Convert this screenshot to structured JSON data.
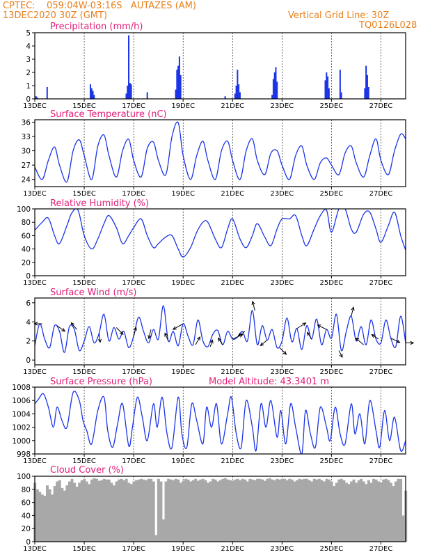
{
  "header": {
    "line1_left": "CPTEC:    059:04W-03:16S   AUTAZES (AM)",
    "line2_left": "13DEC2020 30Z (GMT)",
    "line2_right": "Vertical Grid Line: 30Z",
    "line3_right": "TQ0126L028"
  },
  "colors": {
    "header": "#e8801e",
    "title": "#e0207a",
    "series": "#1a33e6",
    "cloud": "#a8a8a8",
    "arrow": "#000000",
    "grid": "#000000"
  },
  "x_ticks": [
    "13DEC",
    "15DEC",
    "17DEC",
    "19DEC",
    "21DEC",
    "23DEC",
    "25DEC",
    "27DEC"
  ],
  "x_tick_days": [
    0,
    2,
    4,
    6,
    8,
    10,
    12,
    14
  ],
  "x_range_days": [
    0,
    15
  ],
  "chart_data": [
    {
      "id": "precip",
      "type": "bar",
      "title": "Precipitation (mm/h)",
      "ylim": [
        0,
        5
      ],
      "yticks": [
        "0",
        "1",
        "2",
        "3",
        "4",
        "5"
      ],
      "x_days": [
        0.05,
        0.1,
        0.5,
        2.25,
        2.3,
        2.35,
        2.4,
        3.7,
        3.75,
        3.8,
        3.85,
        3.9,
        4.55,
        5.7,
        5.75,
        5.8,
        5.85,
        5.9,
        7.7,
        8.1,
        8.15,
        8.2,
        8.25,
        8.3,
        9.6,
        9.65,
        9.7,
        9.75,
        9.8,
        11.75,
        11.8,
        11.85,
        11.9,
        12.35,
        12.4,
        13.35,
        13.4,
        13.45,
        13.5
      ],
      "values": [
        0.2,
        0.1,
        0.9,
        1.1,
        0.8,
        0.6,
        0.3,
        0.4,
        1.0,
        4.8,
        1.2,
        1.1,
        0.5,
        0.7,
        2.2,
        2.5,
        3.2,
        1.8,
        0.2,
        0.4,
        1.0,
        2.2,
        1.1,
        0.5,
        0.3,
        1.5,
        2.0,
        2.4,
        1.3,
        1.4,
        2.0,
        1.7,
        0.8,
        2.2,
        0.5,
        0.8,
        2.5,
        1.8,
        0.9
      ]
    },
    {
      "id": "temp",
      "type": "line",
      "title": "Surface Temperature (nC)",
      "ylim": [
        22.5,
        36.5
      ],
      "yticks": [
        "24",
        "27",
        "30",
        "33",
        "36"
      ],
      "x": [
        0,
        0.3,
        0.55,
        0.8,
        1.0,
        1.3,
        1.55,
        1.8,
        2.0,
        2.3,
        2.55,
        2.8,
        3.0,
        3.3,
        3.55,
        3.8,
        4.0,
        4.3,
        4.55,
        4.8,
        5.0,
        5.3,
        5.55,
        5.8,
        6.0,
        6.3,
        6.55,
        6.8,
        7.0,
        7.3,
        7.55,
        7.8,
        8.0,
        8.3,
        8.55,
        8.8,
        9.0,
        9.3,
        9.55,
        9.8,
        10.0,
        10.3,
        10.55,
        10.8,
        11.0,
        11.3,
        11.55,
        11.8,
        12.0,
        12.3,
        12.55,
        12.8,
        13.0,
        13.3,
        13.55,
        13.8,
        14.0,
        14.3,
        14.55,
        14.8,
        15.0
      ],
      "values": [
        26.6,
        24.0,
        28.0,
        30.8,
        27.0,
        23.5,
        30.0,
        32.3,
        29.0,
        24.0,
        31.0,
        33.3,
        29.0,
        24.5,
        30.0,
        32.4,
        28.0,
        24.5,
        30.5,
        31.8,
        28.0,
        25.0,
        33.0,
        35.9,
        29.0,
        24.0,
        29.0,
        32.0,
        28.0,
        24.0,
        30.0,
        32.0,
        28.0,
        24.0,
        30.0,
        32.5,
        28.0,
        25.0,
        29.5,
        30.0,
        27.0,
        24.0,
        29.0,
        31.0,
        27.0,
        24.0,
        27.5,
        28.5,
        27.0,
        25.0,
        29.5,
        31.0,
        27.5,
        24.5,
        29.0,
        32.5,
        28.0,
        25.0,
        30.0,
        33.5,
        32.5
      ]
    },
    {
      "id": "rh",
      "type": "line",
      "title": "Relative Humidity (%)",
      "ylim": [
        0,
        100
      ],
      "yticks": [
        "0",
        "20",
        "40",
        "60",
        "80",
        "100"
      ],
      "x": [
        0,
        0.3,
        0.55,
        0.8,
        1.0,
        1.3,
        1.5,
        1.75,
        2.0,
        2.3,
        2.55,
        2.8,
        3.0,
        3.3,
        3.55,
        3.8,
        4.0,
        4.3,
        4.55,
        4.8,
        5.0,
        5.3,
        5.55,
        5.8,
        6.0,
        6.3,
        6.55,
        6.8,
        7.0,
        7.3,
        7.55,
        7.8,
        8.0,
        8.3,
        8.55,
        8.8,
        9.0,
        9.3,
        9.55,
        9.8,
        10.0,
        10.3,
        10.55,
        10.8,
        11.0,
        11.3,
        11.55,
        11.8,
        12.0,
        12.3,
        12.55,
        12.8,
        13.0,
        13.3,
        13.55,
        13.8,
        14.0,
        14.3,
        14.55,
        14.8,
        15.0
      ],
      "values": [
        68,
        80,
        86,
        60,
        48,
        75,
        94,
        98,
        60,
        40,
        55,
        78,
        90,
        72,
        48,
        60,
        72,
        85,
        60,
        42,
        48,
        58,
        60,
        40,
        28,
        42,
        65,
        80,
        80,
        55,
        42,
        70,
        85,
        55,
        42,
        60,
        78,
        58,
        45,
        70,
        85,
        85,
        90,
        60,
        45,
        70,
        90,
        98,
        65,
        100,
        100,
        70,
        65,
        92,
        95,
        70,
        50,
        75,
        95,
        60,
        38
      ]
    },
    {
      "id": "wind",
      "type": "line",
      "title": "Surface Wind (m/s)",
      "ylim": [
        -0.5,
        6.5
      ],
      "yticks": [
        "0",
        "2",
        "4",
        "6"
      ],
      "x": [
        0,
        0.2,
        0.4,
        0.6,
        0.8,
        1.0,
        1.2,
        1.4,
        1.6,
        1.8,
        2.0,
        2.2,
        2.4,
        2.6,
        2.8,
        3.0,
        3.2,
        3.4,
        3.6,
        3.8,
        4.0,
        4.2,
        4.4,
        4.6,
        4.8,
        5.0,
        5.2,
        5.4,
        5.6,
        5.8,
        6.0,
        6.2,
        6.4,
        6.6,
        6.8,
        7.0,
        7.2,
        7.4,
        7.6,
        7.8,
        8.0,
        8.2,
        8.4,
        8.6,
        8.8,
        9.0,
        9.2,
        9.4,
        9.6,
        9.8,
        10.0,
        10.2,
        10.4,
        10.6,
        10.8,
        11.0,
        11.2,
        11.4,
        11.6,
        11.8,
        12.0,
        12.2,
        12.4,
        12.6,
        12.8,
        13.0,
        13.2,
        13.4,
        13.6,
        13.8,
        14.0,
        14.2,
        14.4,
        14.6,
        14.8,
        15.0
      ],
      "values": [
        1.5,
        3.8,
        2.2,
        1.3,
        3.6,
        3.0,
        0.8,
        3.5,
        3.2,
        1.0,
        2.0,
        3.5,
        1.8,
        2.8,
        4.8,
        2.0,
        3.4,
        2.2,
        3.0,
        1.3,
        2.5,
        4.5,
        3.0,
        1.8,
        3.2,
        2.2,
        5.7,
        2.0,
        3.0,
        1.5,
        3.8,
        2.5,
        1.6,
        4.2,
        2.0,
        1.4,
        2.7,
        3.1,
        1.6,
        3.0,
        2.2,
        2.4,
        3.0,
        2.0,
        5.2,
        1.6,
        3.6,
        2.1,
        3.2,
        1.3,
        2.0,
        4.4,
        1.9,
        3.3,
        1.1,
        3.6,
        2.2,
        4.3,
        1.6,
        3.2,
        2.3,
        4.8,
        1.0,
        3.0,
        4.6,
        2.0,
        3.5,
        1.6,
        4.2,
        2.2,
        1.8,
        4.2,
        2.3,
        1.4,
        4.6,
        1.8
      ]
    },
    {
      "id": "pressure",
      "type": "line",
      "title": "Surface Pressure (hPa)",
      "annotation": "Model Altitude: 43.3401 m",
      "ylim": [
        998,
        1008
      ],
      "yticks": [
        "998",
        "1000",
        "1002",
        "1004",
        "1006",
        "1008"
      ],
      "x": [
        0,
        0.15,
        0.35,
        0.55,
        0.75,
        0.9,
        1.1,
        1.3,
        1.55,
        1.8,
        1.95,
        2.1,
        2.3,
        2.55,
        2.8,
        2.95,
        3.15,
        3.35,
        3.55,
        3.8,
        3.95,
        4.15,
        4.35,
        4.55,
        4.8,
        4.95,
        5.15,
        5.35,
        5.55,
        5.8,
        5.95,
        6.15,
        6.35,
        6.55,
        6.8,
        6.95,
        7.15,
        7.35,
        7.55,
        7.8,
        7.95,
        8.15,
        8.35,
        8.55,
        8.8,
        8.95,
        9.15,
        9.35,
        9.55,
        9.8,
        9.95,
        10.15,
        10.35,
        10.55,
        10.8,
        10.95,
        11.15,
        11.35,
        11.55,
        11.8,
        11.95,
        12.15,
        12.35,
        12.55,
        12.8,
        12.95,
        13.15,
        13.35,
        13.55,
        13.8,
        13.95,
        14.15,
        14.35,
        14.55,
        14.8,
        15.0
      ],
      "values": [
        1005.5,
        1006.2,
        1007.0,
        1005.0,
        1002.0,
        1005.0,
        1003.0,
        1002.0,
        1007.2,
        1006.0,
        1003.0,
        1001.5,
        999.5,
        1004.5,
        1006.5,
        1001.5,
        999.0,
        1002.5,
        1005.5,
        999.2,
        1002.0,
        1006.5,
        1003.5,
        1000.0,
        1005.5,
        1002.0,
        1006.5,
        1001.0,
        999.0,
        1006.5,
        1001.0,
        999.0,
        1005.5,
        1003.0,
        999.5,
        1005.0,
        1002.0,
        1005.5,
        999.5,
        1004.0,
        1006.5,
        1001.0,
        999.0,
        1006.0,
        1002.0,
        998.5,
        1005.5,
        1002.0,
        1006.0,
        1000.5,
        1004.5,
        999.5,
        1005.5,
        1002.0,
        998.0,
        1004.5,
        1001.0,
        999.0,
        1005.0,
        1002.0,
        1000.0,
        1005.0,
        1001.0,
        999.5,
        1005.5,
        1001.0,
        1004.0,
        999.5,
        1006.0,
        1001.5,
        999.0,
        1004.5,
        1000.0,
        1003.5,
        998.5,
        1000.0
      ]
    },
    {
      "id": "cloud",
      "type": "area",
      "title": "Cloud Cover (%)",
      "ylim": [
        0,
        100
      ],
      "yticks": [
        "0",
        "20",
        "40",
        "60",
        "80",
        "100"
      ],
      "x": [
        0,
        0.1,
        0.2,
        0.3,
        0.4,
        0.5,
        0.6,
        0.7,
        0.8,
        0.9,
        1.0,
        1.1,
        1.2,
        1.3,
        1.4,
        1.5,
        1.6,
        1.7,
        1.8,
        1.9,
        2.0,
        2.1,
        2.2,
        2.3,
        2.4,
        2.5,
        2.6,
        2.7,
        2.8,
        2.9,
        3.0,
        3.1,
        3.2,
        3.3,
        3.4,
        3.5,
        3.6,
        3.7,
        3.8,
        3.9,
        4.0,
        4.1,
        4.2,
        4.3,
        4.4,
        4.5,
        4.6,
        4.7,
        4.8,
        4.9,
        5.0,
        5.1,
        5.2,
        5.3,
        5.4,
        5.5,
        5.6,
        5.7,
        5.8,
        5.9,
        6.0,
        6.1,
        6.2,
        6.3,
        6.4,
        6.5,
        6.6,
        6.7,
        6.8,
        6.9,
        7.0,
        7.1,
        7.2,
        7.3,
        7.4,
        7.5,
        7.6,
        7.7,
        7.8,
        7.9,
        8.0,
        8.1,
        8.2,
        8.3,
        8.4,
        8.5,
        8.6,
        8.7,
        8.8,
        8.9,
        9.0,
        9.1,
        9.2,
        9.3,
        9.4,
        9.5,
        9.6,
        9.7,
        9.8,
        9.9,
        10.0,
        10.1,
        10.2,
        10.3,
        10.4,
        10.5,
        10.6,
        10.7,
        10.8,
        10.9,
        11.0,
        11.1,
        11.2,
        11.3,
        11.4,
        11.5,
        11.6,
        11.7,
        11.8,
        11.9,
        12.0,
        12.1,
        12.2,
        12.3,
        12.4,
        12.5,
        12.6,
        12.7,
        12.8,
        12.9,
        13.0,
        13.1,
        13.2,
        13.3,
        13.4,
        13.5,
        13.6,
        13.7,
        13.8,
        13.9,
        14.0,
        14.1,
        14.2,
        14.3,
        14.4,
        14.5,
        14.6,
        14.7,
        14.8,
        14.9,
        15.0
      ],
      "values": [
        90,
        80,
        76,
        72,
        70,
        86,
        80,
        72,
        85,
        92,
        94,
        82,
        78,
        86,
        92,
        96,
        90,
        84,
        90,
        94,
        96,
        92,
        88,
        95,
        97,
        96,
        93,
        94,
        96,
        95,
        95,
        90,
        86,
        92,
        95,
        96,
        94,
        96,
        90,
        88,
        92,
        94,
        95,
        96,
        95,
        94,
        96,
        96,
        92,
        10,
        96,
        92,
        34,
        92,
        96,
        95,
        94,
        96,
        95,
        90,
        93,
        96,
        95,
        92,
        94,
        96,
        93,
        95,
        96,
        94,
        90,
        92,
        96,
        95,
        92,
        94,
        96,
        97,
        95,
        94,
        93,
        95,
        96,
        94,
        96,
        95,
        92,
        96,
        95,
        94,
        96,
        96,
        95,
        93,
        96,
        97,
        95,
        94,
        96,
        95,
        96,
        96,
        94,
        96,
        95,
        92,
        94,
        96,
        95,
        96,
        96,
        94,
        92,
        96,
        95,
        96,
        94,
        92,
        96,
        95,
        92,
        85,
        90,
        95,
        96,
        94,
        90,
        88,
        92,
        95,
        90,
        94,
        96,
        92,
        88,
        94,
        90,
        96,
        95,
        92,
        90,
        95,
        96,
        94,
        90,
        85,
        92,
        96,
        96,
        40,
        78
      ]
    }
  ],
  "wind_arrows": [
    {
      "x": 0.3,
      "u": -0.7,
      "v": 0.0
    },
    {
      "x": 0.9,
      "u": 0.7,
      "v": -0.5
    },
    {
      "x": 1.7,
      "u": -0.5,
      "v": 0.6
    },
    {
      "x": 2.6,
      "u": 0.1,
      "v": -0.8
    },
    {
      "x": 3.3,
      "u": 0.6,
      "v": -0.6
    },
    {
      "x": 4.0,
      "u": 0.2,
      "v": 0.8
    },
    {
      "x": 4.7,
      "u": -0.2,
      "v": -0.8
    },
    {
      "x": 5.4,
      "u": -0.3,
      "v": 0.7
    },
    {
      "x": 6.0,
      "u": -0.9,
      "v": -0.5
    },
    {
      "x": 6.5,
      "u": 0.4,
      "v": 0.7
    },
    {
      "x": 7.1,
      "u": 0.2,
      "v": 0.6
    },
    {
      "x": 7.6,
      "u": -0.4,
      "v": 0.6
    },
    {
      "x": 8.0,
      "u": 0.9,
      "v": 0.4
    },
    {
      "x": 8.5,
      "u": -0.6,
      "v": -0.4
    },
    {
      "x": 8.9,
      "u": -0.2,
      "v": 0.8
    },
    {
      "x": 9.4,
      "u": -0.6,
      "v": -0.5
    },
    {
      "x": 9.9,
      "u": 0.6,
      "v": -0.6
    },
    {
      "x": 10.6,
      "u": 0.8,
      "v": 0.5
    },
    {
      "x": 11.2,
      "u": -0.4,
      "v": 0.6
    },
    {
      "x": 11.8,
      "u": -0.8,
      "v": 0.4
    },
    {
      "x": 12.3,
      "u": 0.3,
      "v": -0.6
    },
    {
      "x": 12.8,
      "u": 0.2,
      "v": 0.8
    },
    {
      "x": 13.3,
      "u": -0.7,
      "v": 0.6
    },
    {
      "x": 13.9,
      "u": -0.6,
      "v": 0.4
    },
    {
      "x": 14.4,
      "u": 0.8,
      "v": -0.4
    },
    {
      "x": 15.0,
      "u": 0.7,
      "v": 0.0
    }
  ]
}
